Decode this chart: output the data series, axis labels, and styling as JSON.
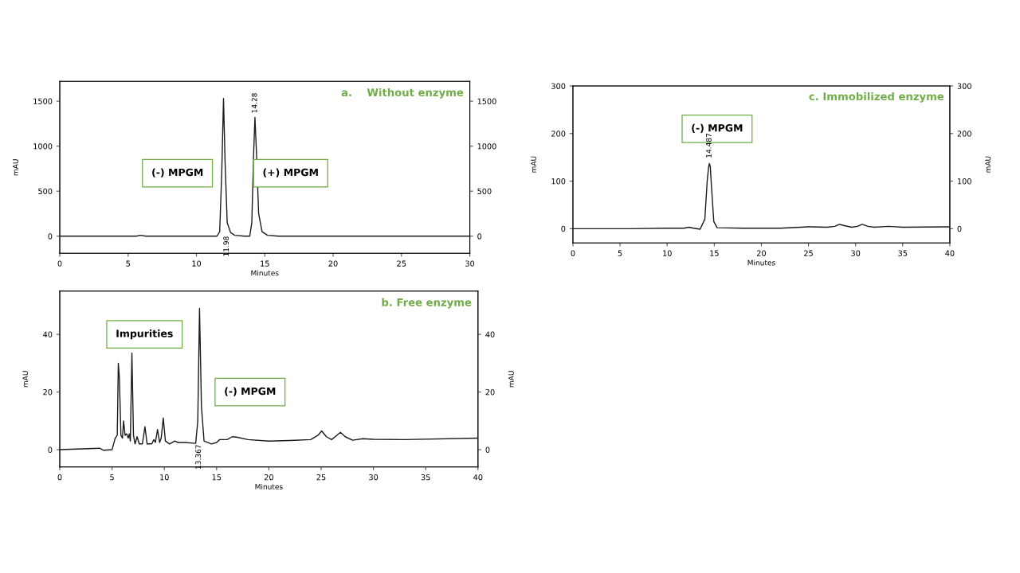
{
  "chart_data": [
    {
      "type": "line",
      "title": "a.    Without enzyme",
      "xlabel": "Minutes",
      "ylabel": "mAU",
      "xlim": [
        0,
        30
      ],
      "xticks": [
        0,
        5,
        10,
        15,
        20,
        25,
        30
      ],
      "ylim": [
        -190,
        1720
      ],
      "yticks": [
        0,
        500,
        1000,
        1500
      ],
      "y2lim": [
        -190,
        1720
      ],
      "y2ticks": [
        0,
        500,
        1000,
        1500
      ],
      "grid": false,
      "legend": false,
      "marker": "none",
      "line_style": "solid",
      "series": [
        {
          "color": "#1a1a1a",
          "x": [
            0,
            5.6,
            5.9,
            6.3,
            10.4,
            11.5,
            11.7,
            11.85,
            11.98,
            12.1,
            12.25,
            12.5,
            12.8,
            13.5,
            13.9,
            14.05,
            14.18,
            14.28,
            14.4,
            14.55,
            14.8,
            15.2,
            16,
            30
          ],
          "values": [
            0,
            0,
            10,
            0,
            0,
            0,
            50,
            700,
            1530,
            800,
            150,
            40,
            10,
            0,
            0,
            150,
            900,
            1320,
            900,
            250,
            50,
            10,
            0,
            0
          ]
        }
      ],
      "annotations": [
        "(-) MPGM",
        "(+) MPGM",
        "11.98",
        "14.28"
      ]
    },
    {
      "type": "line",
      "title": "c. Immobilized enzyme",
      "xlabel": "Minutes",
      "ylabel": "mAU",
      "y2label": "mAU",
      "xlim": [
        0,
        40
      ],
      "xticks": [
        0,
        5,
        10,
        15,
        20,
        25,
        30,
        35,
        40
      ],
      "ylim": [
        -30,
        300
      ],
      "yticks": [
        0,
        100,
        200,
        300
      ],
      "y2lim": [
        -30,
        300
      ],
      "y2ticks": [
        0,
        100,
        200,
        300
      ],
      "grid": false,
      "legend": false,
      "marker": "none",
      "line_style": "solid",
      "series": [
        {
          "color": "#1a1a1a",
          "x": [
            0,
            6,
            10,
            11.8,
            12.3,
            12.8,
            13.5,
            14.0,
            14.25,
            14.4,
            14.487,
            14.58,
            14.7,
            14.95,
            15.3,
            18,
            22,
            25,
            27,
            27.8,
            28.3,
            28.9,
            29.6,
            30.2,
            30.7,
            31.3,
            32,
            33.5,
            35,
            40
          ],
          "values": [
            0,
            0,
            1,
            1,
            3,
            1,
            -1,
            20,
            100,
            130,
            137,
            130,
            90,
            15,
            2,
            1,
            1,
            4,
            3,
            5,
            9,
            6,
            3,
            5,
            9,
            5,
            3,
            5,
            3,
            4
          ]
        }
      ],
      "annotations": [
        "(-) MPGM",
        "14.487"
      ]
    },
    {
      "type": "line",
      "title": "b. Free enzyme",
      "xlabel": "Minutes",
      "ylabel": "mAU",
      "y2label": "mAU",
      "xlim": [
        0,
        40
      ],
      "xticks": [
        0,
        5,
        10,
        15,
        20,
        25,
        30,
        35,
        40
      ],
      "ylim": [
        -6,
        55
      ],
      "yticks": [
        0,
        20,
        40
      ],
      "y2ticks": [
        0,
        20,
        40
      ],
      "y2lim": [
        -6,
        55
      ],
      "grid": false,
      "legend": false,
      "marker": "none",
      "line_style": "solid",
      "series": [
        {
          "color": "#1a1a1a",
          "x": [
            0,
            3.8,
            4.2,
            5,
            5.3,
            5.5,
            5.6,
            5.7,
            5.85,
            6.0,
            6.1,
            6.25,
            6.4,
            6.55,
            6.65,
            6.75,
            6.9,
            7.05,
            7.2,
            7.4,
            7.6,
            7.9,
            8.15,
            8.35,
            8.8,
            9.0,
            9.15,
            9.35,
            9.55,
            9.7,
            9.9,
            10.1,
            10.5,
            11,
            11.3,
            12,
            13.0,
            13.2,
            13.367,
            13.55,
            13.8,
            14.5,
            15,
            15.3,
            16,
            16.5,
            17,
            18,
            20,
            22,
            24,
            24.7,
            25.05,
            25.5,
            26,
            26.5,
            26.85,
            27.3,
            28,
            29,
            30,
            33,
            40
          ],
          "values": [
            0,
            0.5,
            -0.2,
            0,
            4,
            5,
            30,
            25,
            5,
            4,
            10,
            5,
            5.5,
            4,
            5.5,
            3,
            33.5,
            5,
            2,
            4.5,
            2,
            2,
            8,
            2,
            2,
            3.5,
            2.5,
            7,
            2.5,
            4,
            11,
            3,
            2,
            3,
            2.5,
            2.5,
            2.2,
            10,
            49,
            15,
            3,
            2,
            2.5,
            3.5,
            3.5,
            4.5,
            4.3,
            3.5,
            3,
            3.2,
            3.5,
            5,
            6.5,
            4.5,
            3.5,
            5,
            6,
            4.5,
            3.3,
            3.8,
            3.6,
            3.5,
            4
          ]
        }
      ],
      "annotations": [
        "Impurities",
        "(-) MPGM",
        "13.367"
      ]
    }
  ]
}
